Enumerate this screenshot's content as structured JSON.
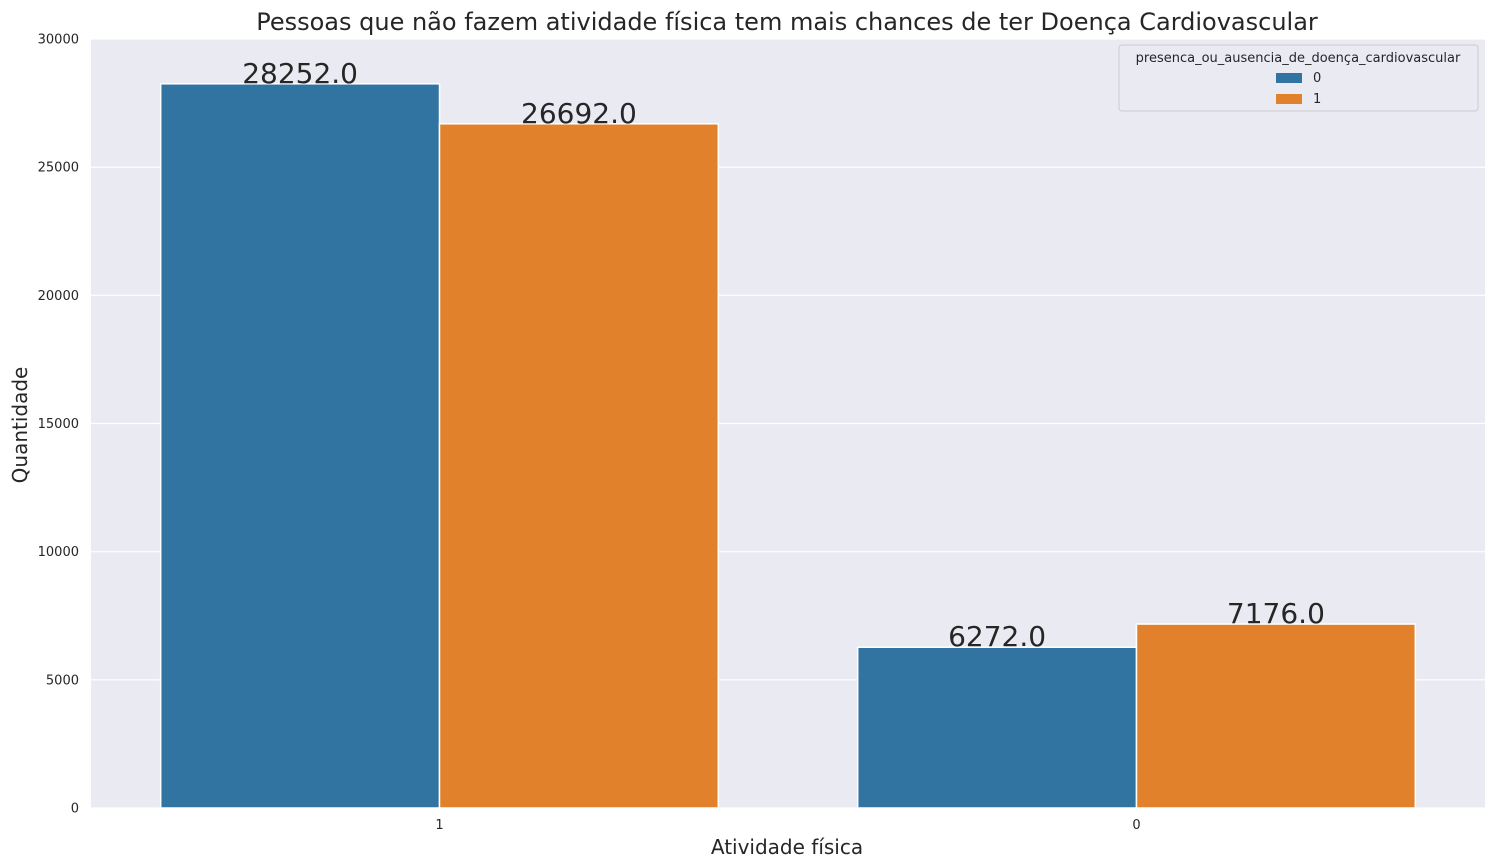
{
  "chart_data": {
    "type": "bar",
    "title": "Pessoas que não fazem atividade física tem mais chances de ter Doença Cardiovascular",
    "xlabel": "Atividade física",
    "ylabel": "Quantidade",
    "categories": [
      "1",
      "0"
    ],
    "series": [
      {
        "name": "0",
        "values": [
          28252,
          6272
        ],
        "labels": [
          "28252.0",
          "6272.0"
        ],
        "color": "#3274a1"
      },
      {
        "name": "1",
        "values": [
          26692,
          7176
        ],
        "labels": [
          "26692.0",
          "7176.0"
        ],
        "color": "#e1812c"
      }
    ],
    "legend_title": "presenca_ou_ausencia_de_doença_cardiovascular",
    "legend_position": "top-right",
    "ylim": [
      0,
      30000
    ],
    "yticks": [
      "0",
      "5000",
      "10000",
      "15000",
      "20000",
      "25000",
      "30000"
    ],
    "grid": true,
    "plot_background": "#eaeaf2",
    "grid_color": "#ffffff"
  }
}
